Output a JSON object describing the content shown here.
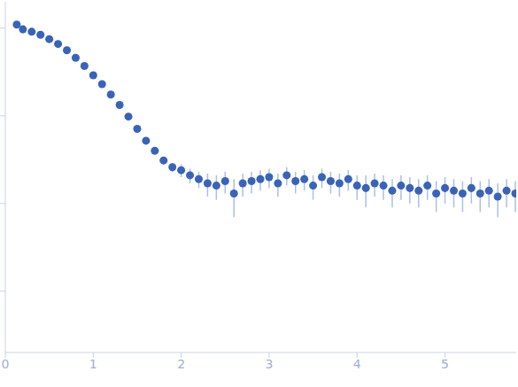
{
  "chart_data": {
    "type": "scatter",
    "color": "#3a63b8",
    "log": "y",
    "tick_labels": "x",
    "marker": "circle",
    "xlim": [
      0,
      5.81
    ],
    "xticks": [
      0,
      1,
      2,
      3,
      4,
      5
    ],
    "ylim": [
      0.0002,
      2
    ],
    "yticks": [
      0.001,
      0.01,
      0.1,
      1
    ],
    "x": [
      0.13,
      0.2,
      0.3,
      0.4,
      0.5,
      0.6,
      0.7,
      0.8,
      0.9,
      1.0,
      1.1,
      1.2,
      1.3,
      1.4,
      1.5,
      1.6,
      1.7,
      1.8,
      1.9,
      2.0,
      2.1,
      2.2,
      2.3,
      2.4,
      2.5,
      2.6,
      2.7,
      2.8,
      2.9,
      3.0,
      3.1,
      3.2,
      3.3,
      3.4,
      3.5,
      3.6,
      3.7,
      3.8,
      3.9,
      4.0,
      4.1,
      4.2,
      4.3,
      4.4,
      4.5,
      4.6,
      4.7,
      4.8,
      4.9,
      5.0,
      5.1,
      5.2,
      5.3,
      5.4,
      5.5,
      5.6,
      5.7,
      5.8
    ],
    "values": [
      1.1,
      0.97,
      0.91,
      0.84,
      0.75,
      0.66,
      0.56,
      0.46,
      0.37,
      0.29,
      0.23,
      0.175,
      0.133,
      0.098,
      0.071,
      0.052,
      0.04,
      0.031,
      0.026,
      0.024,
      0.021,
      0.019,
      0.017,
      0.016,
      0.018,
      0.013,
      0.017,
      0.018,
      0.019,
      0.02,
      0.017,
      0.021,
      0.018,
      0.019,
      0.016,
      0.02,
      0.018,
      0.017,
      0.019,
      0.016,
      0.015,
      0.017,
      0.016,
      0.014,
      0.016,
      0.015,
      0.014,
      0.016,
      0.013,
      0.015,
      0.014,
      0.013,
      0.015,
      0.013,
      0.014,
      0.012,
      0.014,
      0.013
    ],
    "errors": [
      0.08,
      0.01,
      0.01,
      0.01,
      0.008,
      0.007,
      0.006,
      0.005,
      0.004,
      0.003,
      0.003,
      0.003,
      0.002,
      0.002,
      0.002,
      0.002,
      0.002,
      0.003,
      0.003,
      0.004,
      0.004,
      0.004,
      0.005,
      0.005,
      0.005,
      0.006,
      0.005,
      0.005,
      0.005,
      0.005,
      0.005,
      0.005,
      0.005,
      0.005,
      0.005,
      0.005,
      0.005,
      0.005,
      0.005,
      0.005,
      0.006,
      0.005,
      0.005,
      0.005,
      0.005,
      0.005,
      0.005,
      0.005,
      0.005,
      0.005,
      0.005,
      0.005,
      0.005,
      0.005,
      0.005,
      0.005,
      0.005,
      0.005
    ]
  }
}
